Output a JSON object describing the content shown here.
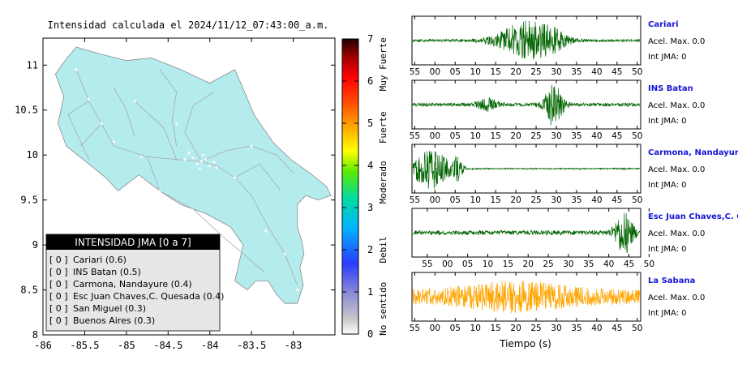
{
  "map": {
    "title": "Intensidad calculada el 2024/11/12_07:43:00_a.m.",
    "x_ticks": [
      "-86",
      "-85.5",
      "-85",
      "-84.5",
      "-84",
      "-83.5",
      "-83"
    ],
    "y_ticks": [
      "11",
      "10.5",
      "10",
      "9.5",
      "9",
      "8.5",
      "8"
    ],
    "xlim": [
      -86,
      -82.5
    ],
    "ylim": [
      8,
      11.3
    ],
    "land_color": "#b4eced",
    "road_color": "#a9a9a9",
    "city_color": "#ffffff"
  },
  "colorbar": {
    "ticks": [
      "7",
      "6",
      "5",
      "4",
      "3",
      "2",
      "1",
      "0"
    ],
    "categories": [
      "Muy Fuerte",
      "Fuerte",
      "Moderado",
      "Debil",
      "No sentido"
    ]
  },
  "legend": {
    "header": "INTENSIDAD JMA [0 a 7]",
    "items": [
      {
        "bracket": "[ 0 ]",
        "station": "Cariari (0.6)"
      },
      {
        "bracket": "[ 0 ]",
        "station": "INS Batan (0.5)"
      },
      {
        "bracket": "[ 0 ]",
        "station": "Carmona, Nandayure (0.4)"
      },
      {
        "bracket": "[ 0 ]",
        "station": "Esc Juan Chaves,C. Quesada (0.4)"
      },
      {
        "bracket": "[ 0 ]",
        "station": "San Miguel (0.3)"
      },
      {
        "bracket": "[ 0 ]",
        "station": "Buenos Aires (0.3)"
      }
    ]
  },
  "waveforms": {
    "xlabel": "Tiempo (s)",
    "panels": [
      {
        "station": "Cariari",
        "acel": "Acel. Max. 0.0",
        "int": "Int JMA: 0",
        "color": "#006400",
        "ticks": [
          "55",
          "00",
          "05",
          "10",
          "15",
          "20",
          "25",
          "30",
          "35",
          "40",
          "45",
          "50"
        ],
        "tick_offset": 0.0,
        "bursts": [
          {
            "center": 0.5,
            "width": 0.12,
            "amp": 0.85
          },
          {
            "center": 0.62,
            "width": 0.06,
            "amp": 0.3
          }
        ],
        "base": 0.06
      },
      {
        "station": "INS Batan",
        "acel": "Acel. Max. 0.0",
        "int": "Int JMA: 0",
        "color": "#006400",
        "ticks": [
          "55",
          "00",
          "05",
          "10",
          "15",
          "20",
          "25",
          "30",
          "35",
          "40",
          "45",
          "50"
        ],
        "tick_offset": 0.0,
        "bursts": [
          {
            "center": 0.62,
            "width": 0.04,
            "amp": 0.95
          },
          {
            "center": 0.33,
            "width": 0.04,
            "amp": 0.3
          }
        ],
        "base": 0.08
      },
      {
        "station": "Carmona, Nandayure",
        "acel": "Acel. Max. 0.0",
        "int": "Int JMA: 0",
        "color": "#006400",
        "ticks": [
          "55",
          "00",
          "05",
          "10",
          "15",
          "20",
          "25",
          "30",
          "35",
          "40",
          "45",
          "50"
        ],
        "tick_offset": 0.0,
        "bursts": [
          {
            "center": 0.08,
            "width": 0.08,
            "amp": 0.95
          },
          {
            "center": 0.2,
            "width": 0.02,
            "amp": 0.5
          }
        ],
        "base": 0.03
      },
      {
        "station": "Esc Juan Chaves,C. Qu",
        "acel": "Acel. Max. 0.0",
        "int": "Int JMA: 0",
        "color": "#006400",
        "ticks": [
          "55",
          "00",
          "05",
          "10",
          "15",
          "20",
          "25",
          "30",
          "35",
          "40",
          "45",
          "50"
        ],
        "tick_offset": 0.055,
        "bursts": [
          {
            "center": 0.93,
            "width": 0.04,
            "amp": 0.95
          }
        ],
        "base": 0.1
      },
      {
        "station": "La Sabana",
        "acel": "Acel. Max. 0.0",
        "int": "Int JMA: 0",
        "color": "#ffa500",
        "ticks": [
          "55",
          "00",
          "05",
          "10",
          "15",
          "20",
          "25",
          "30",
          "35",
          "40",
          "45",
          "50"
        ],
        "tick_offset": 0.0,
        "bursts": [
          {
            "center": 0.45,
            "width": 0.25,
            "amp": 0.4
          }
        ],
        "base": 0.35
      }
    ]
  },
  "chart_data": [
    {
      "type": "heatmap",
      "title": "Intensidad calculada el 2024/11/12_07:43:00_a.m.",
      "xlabel": "",
      "ylabel": "",
      "xlim": [
        -86,
        -82.5
      ],
      "ylim": [
        8,
        11.3
      ],
      "colorbar_range": [
        0,
        7
      ],
      "legend": [
        {
          "station": "Cariari",
          "intensity": 0.6
        },
        {
          "station": "INS Batan",
          "intensity": 0.5
        },
        {
          "station": "Carmona, Nandayure",
          "intensity": 0.4
        },
        {
          "station": "Esc Juan Chaves,C. Quesada",
          "intensity": 0.4
        },
        {
          "station": "San Miguel",
          "intensity": 0.3
        },
        {
          "station": "Buenos Aires",
          "intensity": 0.3
        }
      ]
    },
    {
      "type": "line",
      "xlabel": "Tiempo (s)",
      "series": [
        {
          "name": "Cariari",
          "acel_max": 0.0,
          "int_jma": 0
        },
        {
          "name": "INS Batan",
          "acel_max": 0.0,
          "int_jma": 0
        },
        {
          "name": "Carmona, Nandayure",
          "acel_max": 0.0,
          "int_jma": 0
        },
        {
          "name": "Esc Juan Chaves,C. Qu",
          "acel_max": 0.0,
          "int_jma": 0
        },
        {
          "name": "La Sabana",
          "acel_max": 0.0,
          "int_jma": 0
        }
      ]
    }
  ]
}
